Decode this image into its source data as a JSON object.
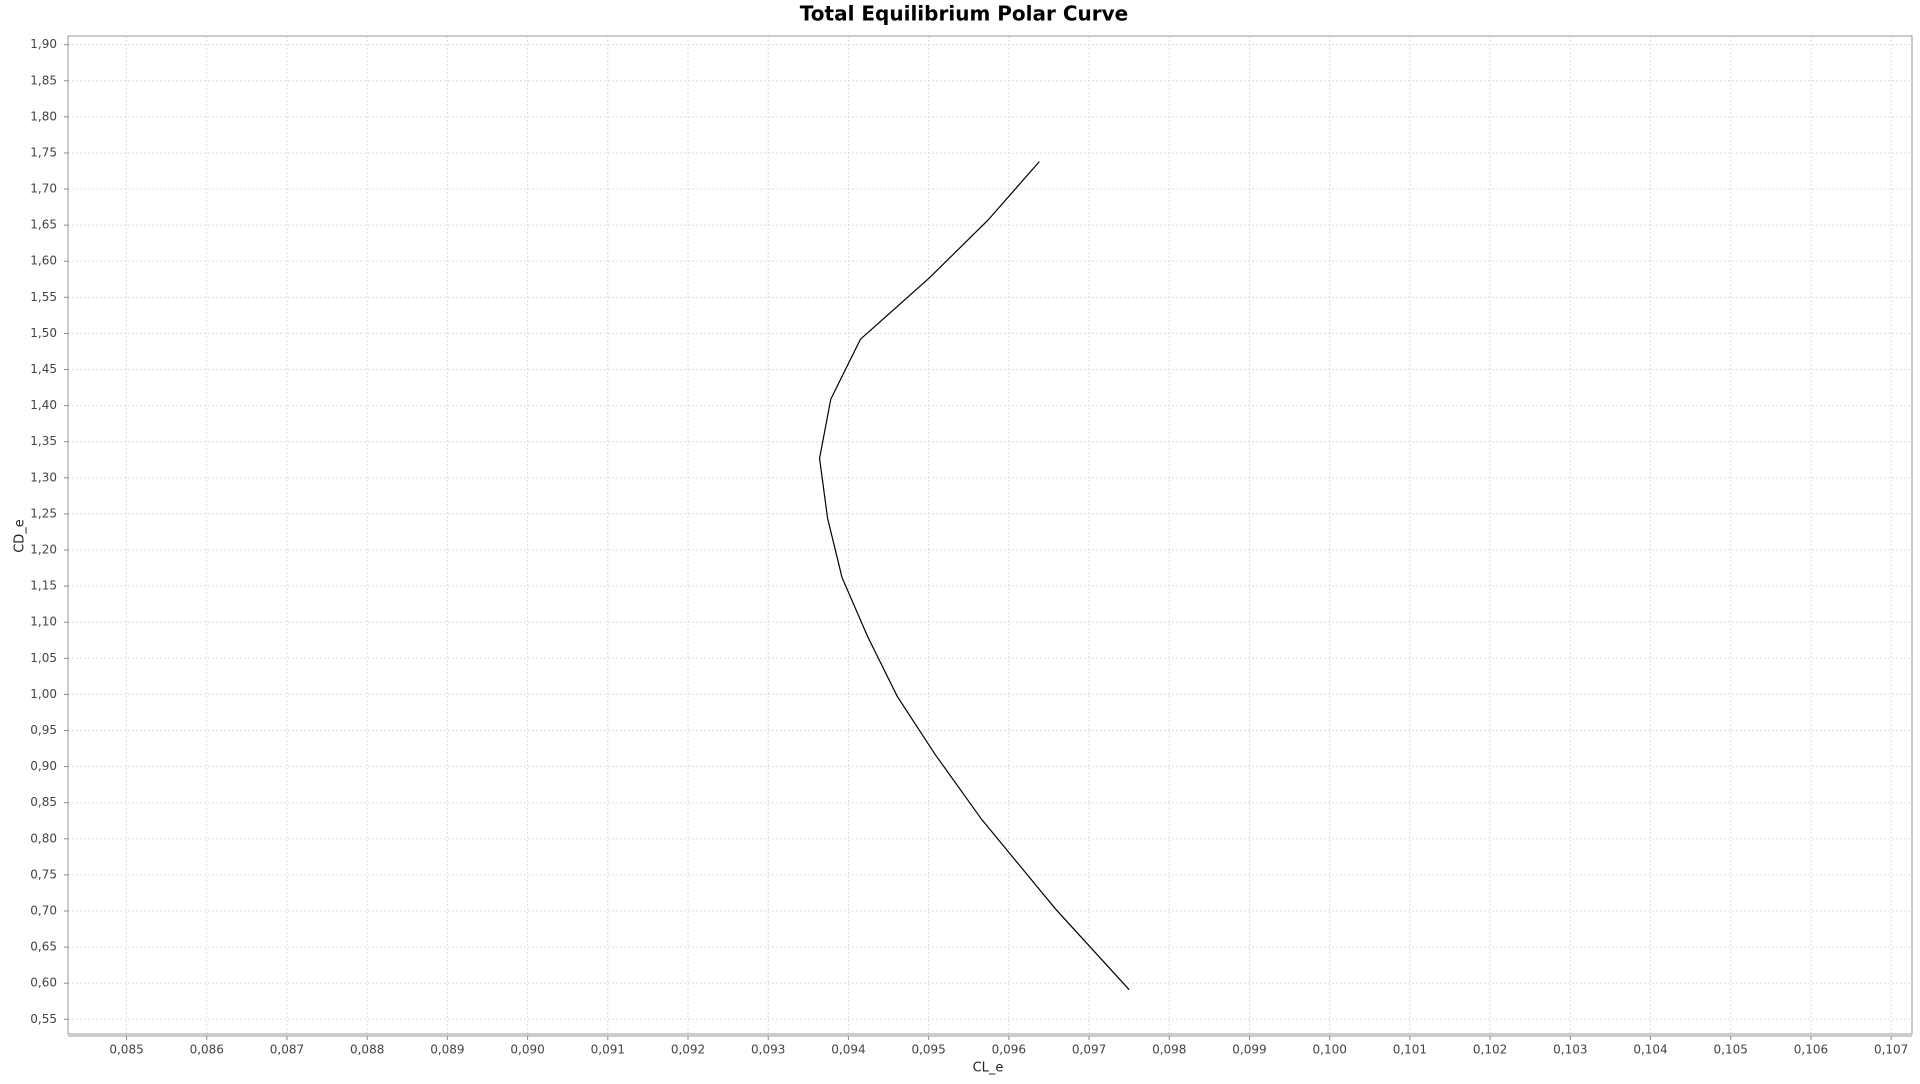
{
  "chart_data": {
    "type": "line",
    "title": "Total Equilibrium Polar Curve",
    "x_label": "CL_e",
    "y_label": "CD_e",
    "x": [
      0.0975,
      0.09658,
      0.09566,
      0.09508,
      0.09461,
      0.09424,
      0.09392,
      0.09374,
      0.09364,
      0.09378,
      0.09415,
      0.09501,
      0.09574,
      0.09638
    ],
    "values": [
      0.591,
      0.703,
      0.827,
      0.917,
      0.997,
      1.08,
      1.162,
      1.244,
      1.327,
      1.409,
      1.492,
      1.577,
      1.657,
      1.738
    ],
    "color": "#000000",
    "xlim": [
      0.08427,
      0.10726
    ],
    "ylim": [
      0.5296,
      1.912
    ],
    "xticks": [
      {
        "value": 0.085,
        "label": "0,085"
      },
      {
        "value": 0.086,
        "label": "0,086"
      },
      {
        "value": 0.087,
        "label": "0,087"
      },
      {
        "value": 0.088,
        "label": "0,088"
      },
      {
        "value": 0.089,
        "label": "0,089"
      },
      {
        "value": 0.09,
        "label": "0,090"
      },
      {
        "value": 0.091,
        "label": "0,091"
      },
      {
        "value": 0.092,
        "label": "0,092"
      },
      {
        "value": 0.093,
        "label": "0,093"
      },
      {
        "value": 0.094,
        "label": "0,094"
      },
      {
        "value": 0.095,
        "label": "0,095"
      },
      {
        "value": 0.096,
        "label": "0,096"
      },
      {
        "value": 0.097,
        "label": "0,097"
      },
      {
        "value": 0.098,
        "label": "0,098"
      },
      {
        "value": 0.099,
        "label": "0,099"
      },
      {
        "value": 0.1,
        "label": "0,100"
      },
      {
        "value": 0.101,
        "label": "0,101"
      },
      {
        "value": 0.102,
        "label": "0,102"
      },
      {
        "value": 0.103,
        "label": "0,103"
      },
      {
        "value": 0.104,
        "label": "0,104"
      },
      {
        "value": 0.105,
        "label": "0,105"
      },
      {
        "value": 0.106,
        "label": "0,106"
      },
      {
        "value": 0.107,
        "label": "0,107"
      }
    ],
    "yticks": [
      {
        "value": 0.55,
        "label": "0,55"
      },
      {
        "value": 0.6,
        "label": "0,60"
      },
      {
        "value": 0.65,
        "label": "0,65"
      },
      {
        "value": 0.7,
        "label": "0,70"
      },
      {
        "value": 0.75,
        "label": "0,75"
      },
      {
        "value": 0.8,
        "label": "0,80"
      },
      {
        "value": 0.85,
        "label": "0,85"
      },
      {
        "value": 0.9,
        "label": "0,90"
      },
      {
        "value": 0.95,
        "label": "0,95"
      },
      {
        "value": 1.0,
        "label": "1,00"
      },
      {
        "value": 1.05,
        "label": "1,05"
      },
      {
        "value": 1.1,
        "label": "1,10"
      },
      {
        "value": 1.15,
        "label": "1,15"
      },
      {
        "value": 1.2,
        "label": "1,20"
      },
      {
        "value": 1.25,
        "label": "1,25"
      },
      {
        "value": 1.3,
        "label": "1,30"
      },
      {
        "value": 1.35,
        "label": "1,35"
      },
      {
        "value": 1.4,
        "label": "1,40"
      },
      {
        "value": 1.45,
        "label": "1,45"
      },
      {
        "value": 1.5,
        "label": "1,50"
      },
      {
        "value": 1.55,
        "label": "1,55"
      },
      {
        "value": 1.6,
        "label": "1,60"
      },
      {
        "value": 1.65,
        "label": "1,65"
      },
      {
        "value": 1.7,
        "label": "1,70"
      },
      {
        "value": 1.75,
        "label": "1,75"
      },
      {
        "value": 1.8,
        "label": "1,80"
      },
      {
        "value": 1.85,
        "label": "1,85"
      },
      {
        "value": 1.9,
        "label": "1,90"
      }
    ],
    "grid": true
  }
}
